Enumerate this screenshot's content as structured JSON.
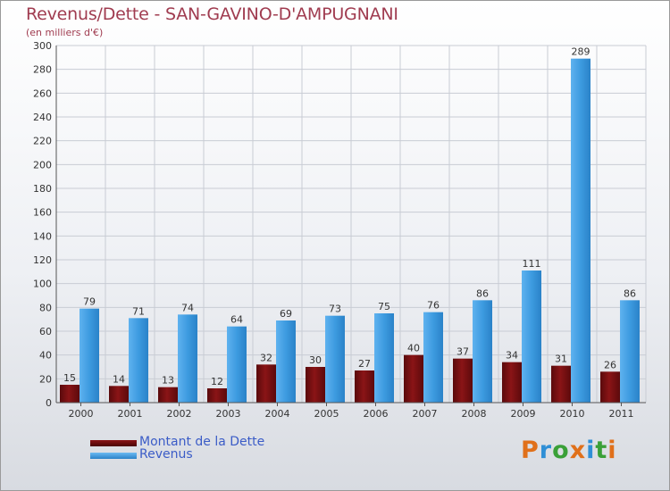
{
  "header": {
    "title": "Revenus/Dette - SAN-GAVINO-D'AMPUGNANI",
    "subtitle": "(en milliers d'€)"
  },
  "legend": {
    "items": [
      {
        "label": "Montant de la Dette",
        "color": "#7a0c0e"
      },
      {
        "label": "Revenus",
        "color": "#3d9be0"
      }
    ]
  },
  "logo": {
    "text": "Proxiti",
    "colors": [
      "#e0701a",
      "#2f8fd6",
      "#3aa038",
      "#e0701a",
      "#2f8fd6",
      "#3aa038",
      "#e0701a"
    ]
  },
  "chart_data": {
    "type": "bar",
    "title": "Revenus/Dette - SAN-GAVINO-D'AMPUGNANI",
    "ylabel": "(en milliers d'€)",
    "xlabel": "",
    "categories": [
      "2000",
      "2001",
      "2002",
      "2003",
      "2004",
      "2005",
      "2006",
      "2007",
      "2008",
      "2009",
      "2010",
      "2011"
    ],
    "ylim": [
      0,
      300
    ],
    "yticks": [
      0,
      20,
      40,
      60,
      80,
      100,
      120,
      140,
      160,
      180,
      200,
      220,
      240,
      260,
      280,
      300
    ],
    "grid": true,
    "series": [
      {
        "name": "Montant de la Dette",
        "color": "#7a0c0e",
        "values": [
          15,
          14,
          13,
          12,
          32,
          30,
          27,
          40,
          37,
          34,
          31,
          26
        ]
      },
      {
        "name": "Revenus",
        "color": "#3d9be0",
        "values": [
          79,
          71,
          74,
          64,
          69,
          73,
          75,
          76,
          86,
          111,
          289,
          86
        ]
      }
    ]
  }
}
